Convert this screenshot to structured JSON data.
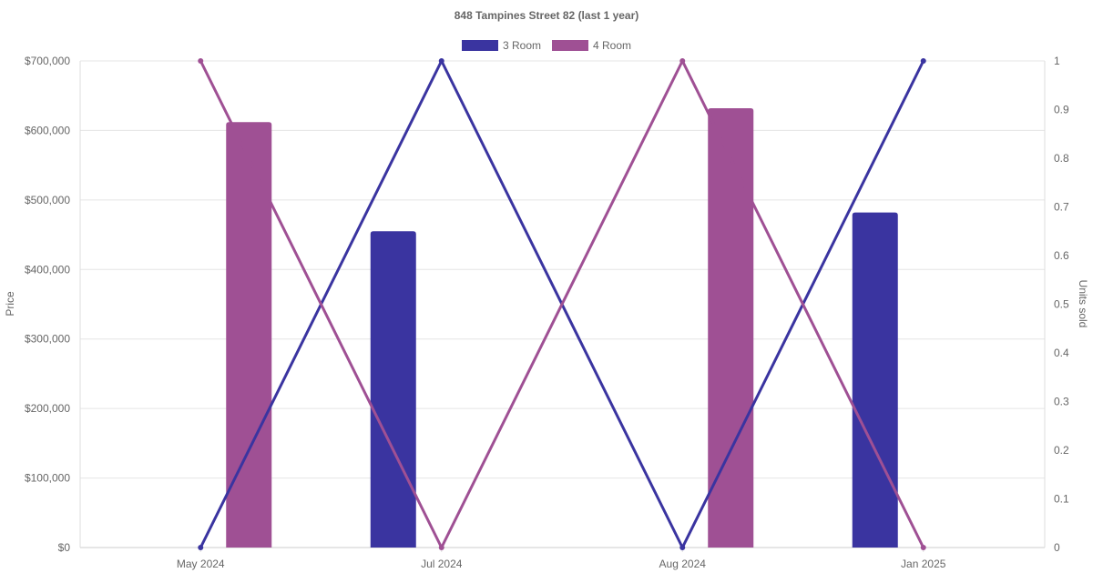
{
  "chart_data": {
    "type": "bar",
    "title": "848 Tampines Street 82 (last 1 year)",
    "categories": [
      "May 2024",
      "Jul 2024",
      "Aug 2024",
      "Jan 2025"
    ],
    "y_left": {
      "label": "Price",
      "ticks": [
        "$0",
        "$100,000",
        "$200,000",
        "$300,000",
        "$400,000",
        "$500,000",
        "$600,000",
        "$700,000"
      ],
      "range": [
        0,
        700000
      ]
    },
    "y_right": {
      "label": "Units sold",
      "ticks": [
        "0",
        "0.1",
        "0.2",
        "0.3",
        "0.4",
        "0.5",
        "0.6",
        "0.7",
        "0.8",
        "0.9",
        "1"
      ],
      "range": [
        0,
        1
      ]
    },
    "grid": true,
    "legend_position": "top-center",
    "series": [
      {
        "name": "3 Room",
        "color": "#3a34a0",
        "price": [
          null,
          455000,
          null,
          482000
        ],
        "units_sold": [
          0,
          1,
          0,
          1
        ]
      },
      {
        "name": "4 Room",
        "color": "#9f5094",
        "price": [
          612000,
          null,
          632000,
          null
        ],
        "units_sold": [
          1,
          0,
          1,
          0
        ]
      }
    ]
  }
}
